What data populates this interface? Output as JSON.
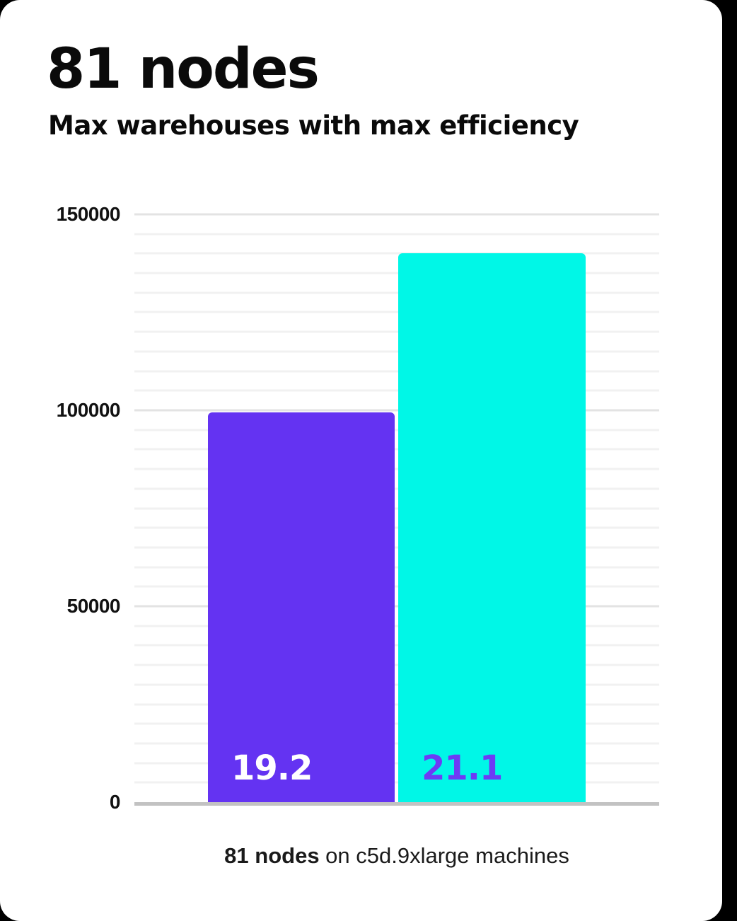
{
  "card": {
    "title": "81 nodes",
    "subtitle": "Max warehouses with max efficiency",
    "caption_bold": "81 nodes",
    "caption_rest": " on c5d.9xlarge machines"
  },
  "colors": {
    "background": "#000000",
    "card_background": "#ffffff",
    "purple_accent": "#6433f2",
    "cyan_accent": "#00f7e7",
    "major_gridline": "#e3e3e3",
    "minor_gridline": "#f1f1f1",
    "axis_line": "#c2c2c2",
    "text": "#0a0a0a"
  },
  "chart_data": {
    "type": "bar",
    "title": "81 nodes",
    "subtitle": "Max warehouses with max efficiency",
    "caption": "81 nodes on c5d.9xlarge machines",
    "categories": [
      "19.2",
      "21.1"
    ],
    "series": [
      {
        "name": "left-bar",
        "value": 99500,
        "bar_color": "#6433f2",
        "label": "19.2",
        "label_color": "#ffffff"
      },
      {
        "name": "right-bar",
        "value": 140000,
        "bar_color": "#00f7e7",
        "label": "21.1",
        "label_color": "#6d3bf5"
      }
    ],
    "ylabel": "",
    "xlabel": "",
    "ylim": [
      0,
      150000
    ],
    "yticks": [
      {
        "label": "150000",
        "value": 150000
      },
      {
        "label": "100000",
        "value": 100000
      },
      {
        "label": "50000",
        "value": 50000
      },
      {
        "label": "0",
        "value": 0
      }
    ],
    "minor_gridline_step": 5000,
    "grid": true,
    "legend_position": "none"
  }
}
